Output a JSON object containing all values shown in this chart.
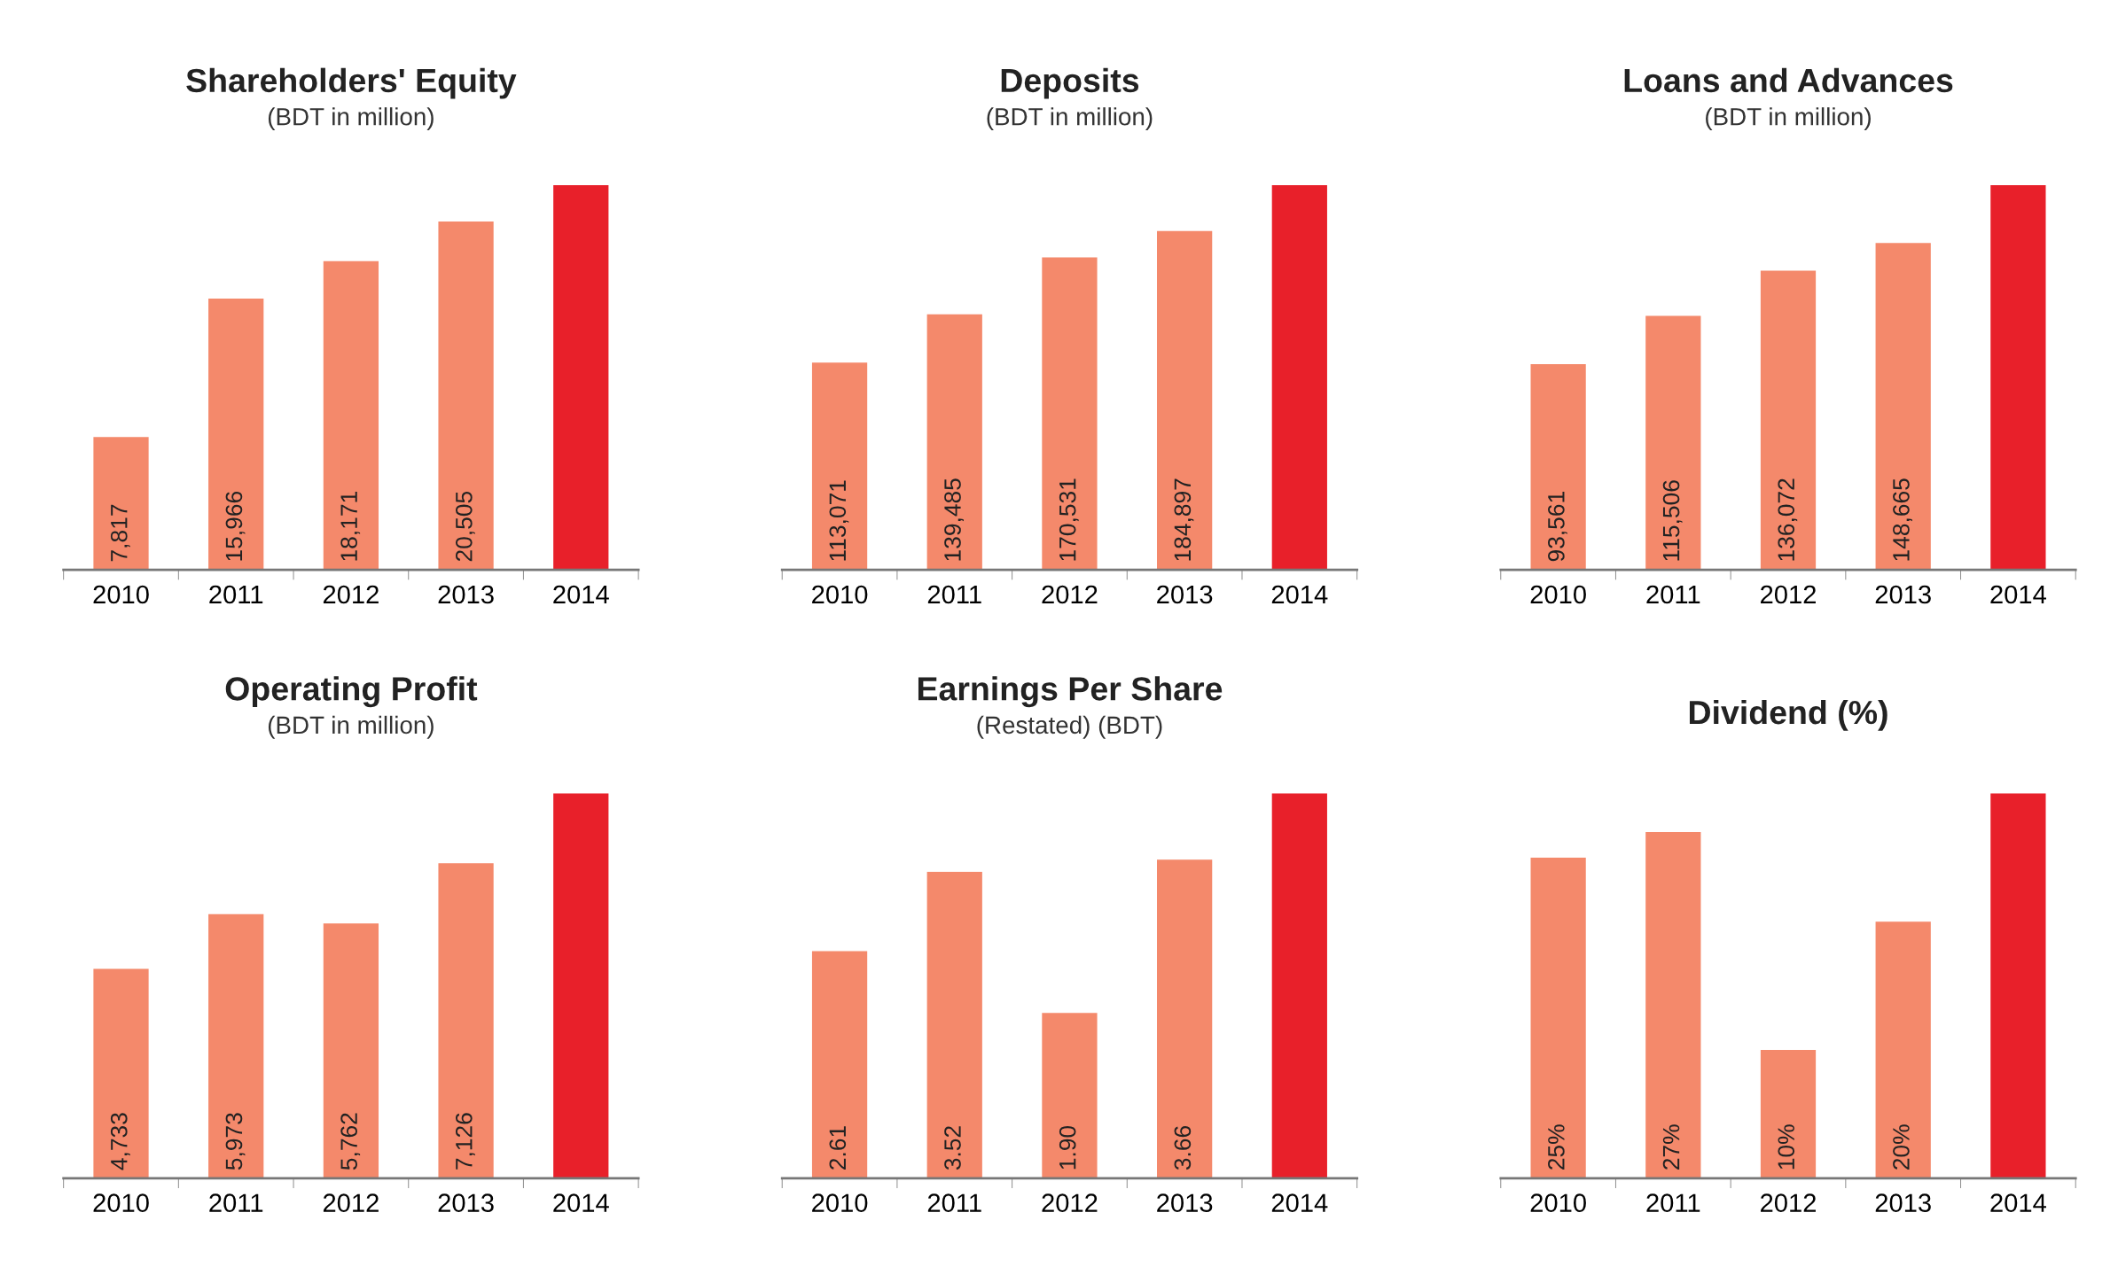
{
  "chart_data": [
    {
      "type": "bar",
      "title": "Shareholders' Equity",
      "subtitle": "(BDT in million)",
      "categories": [
        "2010",
        "2011",
        "2012",
        "2013",
        "2014"
      ],
      "values": [
        7817,
        15966,
        18171,
        20505,
        22650
      ],
      "value_labels": [
        "7,817",
        "15,966",
        "18,171",
        "20,505",
        null
      ],
      "colors": [
        "#f4896b",
        "#f4896b",
        "#f4896b",
        "#f4896b",
        "#e8202a"
      ]
    },
    {
      "type": "bar",
      "title": "Deposits",
      "subtitle": "(BDT in million)",
      "categories": [
        "2010",
        "2011",
        "2012",
        "2013",
        "2014"
      ],
      "values": [
        113071,
        139485,
        170531,
        184897,
        210000
      ],
      "value_labels": [
        "113,071",
        "139,485",
        "170,531",
        "184,897",
        null
      ],
      "colors": [
        "#f4896b",
        "#f4896b",
        "#f4896b",
        "#f4896b",
        "#e8202a"
      ]
    },
    {
      "type": "bar",
      "title": "Loans and Advances",
      "subtitle": "(BDT in million)",
      "categories": [
        "2010",
        "2011",
        "2012",
        "2013",
        "2014"
      ],
      "values": [
        93561,
        115506,
        136072,
        148665,
        175000
      ],
      "value_labels": [
        "93,561",
        "115,506",
        "136,072",
        "148,665",
        null
      ],
      "colors": [
        "#f4896b",
        "#f4896b",
        "#f4896b",
        "#f4896b",
        "#e8202a"
      ]
    },
    {
      "type": "bar",
      "title": "Operating Profit",
      "subtitle": "(BDT in million)",
      "categories": [
        "2010",
        "2011",
        "2012",
        "2013",
        "2014"
      ],
      "values": [
        4733,
        5973,
        5762,
        7126,
        8700
      ],
      "value_labels": [
        "4,733",
        "5,973",
        "5,762",
        "7,126",
        null
      ],
      "colors": [
        "#f4896b",
        "#f4896b",
        "#f4896b",
        "#f4896b",
        "#e8202a"
      ]
    },
    {
      "type": "bar",
      "title": "Earnings Per Share",
      "subtitle": "(Restated) (BDT)",
      "categories": [
        "2010",
        "2011",
        "2012",
        "2013",
        "2014"
      ],
      "values": [
        2.61,
        3.52,
        1.9,
        3.66,
        4.42
      ],
      "value_labels": [
        "2.61",
        "3.52",
        "1.90",
        "3.66",
        null
      ],
      "colors": [
        "#f4896b",
        "#f4896b",
        "#f4896b",
        "#f4896b",
        "#e8202a"
      ]
    },
    {
      "type": "bar",
      "title": "Dividend (%)",
      "categories": [
        "2010",
        "2011",
        "2012",
        "2013",
        "2014"
      ],
      "values": [
        25,
        27,
        10,
        20,
        30
      ],
      "value_labels": [
        "25%",
        "27%",
        "10%",
        "20%",
        null
      ],
      "colors": [
        "#f4896b",
        "#f4896b",
        "#f4896b",
        "#f4896b",
        "#e8202a"
      ]
    }
  ]
}
